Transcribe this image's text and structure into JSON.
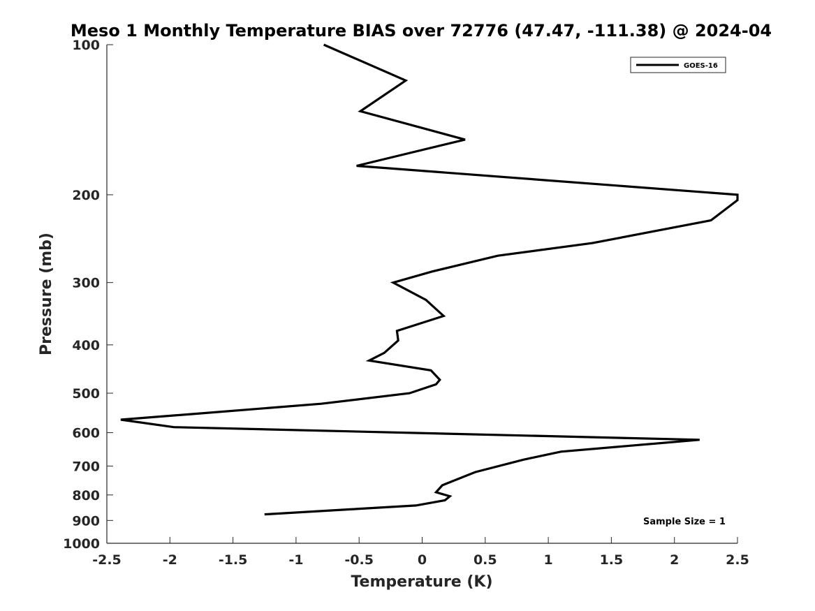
{
  "chart_data": {
    "type": "line",
    "title": "Meso 1 Monthly Temperature BIAS over 72776 (47.47, -111.38) @ 2024-04",
    "xlabel": "Temperature (K)",
    "ylabel": "Pressure (mb)",
    "xlim": [
      -2.5,
      2.5
    ],
    "ylim": [
      100,
      1000
    ],
    "y_scale": "log",
    "y_reversed": true,
    "x_ticks": [
      "-2.5",
      "-2",
      "-1.5",
      "-1",
      "-0.5",
      "0",
      "0.5",
      "1",
      "1.5",
      "2",
      "2.5"
    ],
    "y_ticks": [
      "100",
      "200",
      "300",
      "400",
      "500",
      "600",
      "700",
      "800",
      "900",
      "1000"
    ],
    "grid": false,
    "legend_position": "top-right",
    "series": [
      {
        "name": "GOES-16",
        "color": "#000000",
        "points": [
          {
            "x": -0.78,
            "p": 100
          },
          {
            "x": -0.13,
            "p": 118
          },
          {
            "x": -0.49,
            "p": 136
          },
          {
            "x": 0.34,
            "p": 155
          },
          {
            "x": -0.52,
            "p": 175
          },
          {
            "x": 2.5,
            "p": 200
          },
          {
            "x": 2.5,
            "p": 205
          },
          {
            "x": 2.29,
            "p": 225
          },
          {
            "x": 1.35,
            "p": 250
          },
          {
            "x": 0.6,
            "p": 265
          },
          {
            "x": 0.08,
            "p": 285
          },
          {
            "x": -0.23,
            "p": 300
          },
          {
            "x": 0.03,
            "p": 325
          },
          {
            "x": 0.17,
            "p": 350
          },
          {
            "x": -0.2,
            "p": 375
          },
          {
            "x": -0.19,
            "p": 392
          },
          {
            "x": -0.3,
            "p": 415
          },
          {
            "x": -0.42,
            "p": 430
          },
          {
            "x": 0.07,
            "p": 450
          },
          {
            "x": 0.14,
            "p": 470
          },
          {
            "x": 0.11,
            "p": 480
          },
          {
            "x": -0.1,
            "p": 500
          },
          {
            "x": -0.8,
            "p": 525
          },
          {
            "x": -1.8,
            "p": 550
          },
          {
            "x": -2.39,
            "p": 565
          },
          {
            "x": -1.97,
            "p": 585
          },
          {
            "x": 2.2,
            "p": 620
          },
          {
            "x": 1.1,
            "p": 655
          },
          {
            "x": 0.8,
            "p": 680
          },
          {
            "x": 0.42,
            "p": 720
          },
          {
            "x": 0.16,
            "p": 765
          },
          {
            "x": 0.11,
            "p": 790
          },
          {
            "x": 0.22,
            "p": 805
          },
          {
            "x": 0.18,
            "p": 820
          },
          {
            "x": -0.05,
            "p": 840
          },
          {
            "x": -0.57,
            "p": 855
          },
          {
            "x": -1.25,
            "p": 875
          }
        ]
      }
    ],
    "annotations": [
      "Sample Size = 1"
    ]
  }
}
